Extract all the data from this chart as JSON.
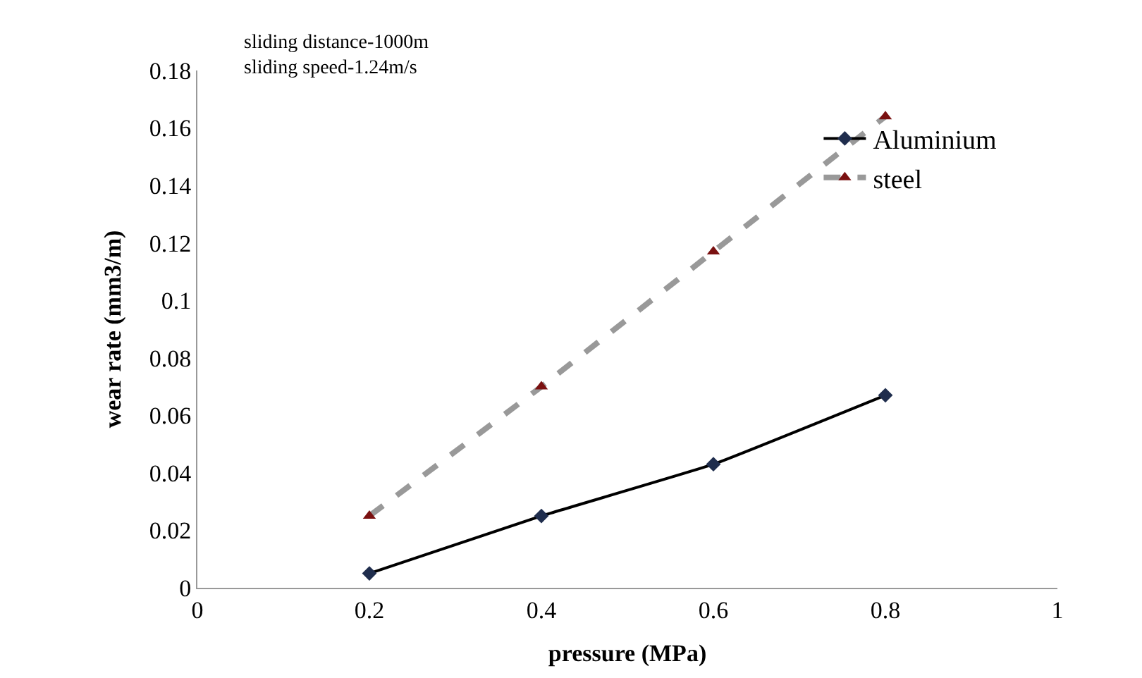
{
  "chart_data": {
    "type": "line",
    "xlabel": "pressure (MPa)",
    "ylabel": "wear rate (mm3/m)",
    "x": [
      0.2,
      0.4,
      0.6,
      0.8
    ],
    "series": [
      {
        "name": "Aluminium",
        "color": "#000000",
        "values": [
          0.005,
          0.025,
          0.043,
          0.067
        ],
        "marker": "diamond",
        "line_style": "solid"
      },
      {
        "name": "steel",
        "color": "#999999",
        "values": [
          0.025,
          0.07,
          0.117,
          0.164
        ],
        "marker": "triangle",
        "line_style": "dashed"
      }
    ],
    "xlim": [
      0,
      1
    ],
    "xticks": [
      0,
      0.2,
      0.4,
      0.6,
      0.8,
      1
    ],
    "ylim": [
      0,
      0.18
    ],
    "yticks": [
      0,
      0.02,
      0.04,
      0.06,
      0.08,
      0.1,
      0.12,
      0.14,
      0.16,
      0.18
    ],
    "annotations": [
      "sliding distance-1000m",
      "sliding speed-1.24m/s"
    ],
    "legend": "top right"
  }
}
